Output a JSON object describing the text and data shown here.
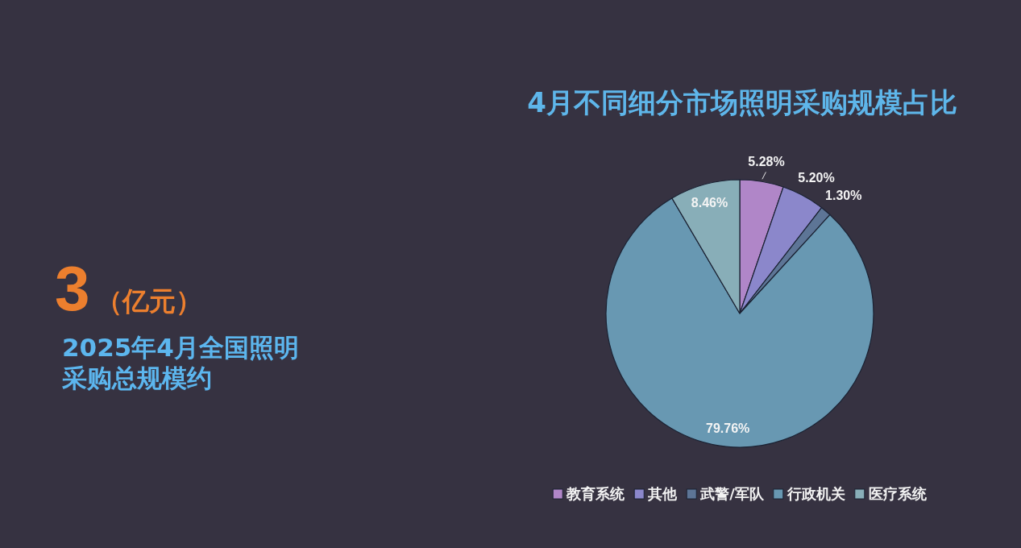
{
  "chart_data": [
    {
      "type": "other",
      "annotations": [
        "3",
        "（亿元）"
      ],
      "subtitle": "2025年4月全国照明采购总规模约"
    },
    {
      "type": "pie",
      "title": "4月不同细分市场照明采购规模占比",
      "categories": [
        "教育系统",
        "其他",
        "武警/军队",
        "行政机关",
        "医疗系统"
      ],
      "values": [
        5.28,
        5.2,
        1.3,
        79.76,
        8.46
      ],
      "colors": [
        "#b086c8",
        "#8b87cb",
        "#5d7596",
        "#6898b2",
        "#88aeb8"
      ],
      "value_labels": [
        "5.28%",
        "5.20%",
        "1.30%",
        "79.76%",
        "8.46%"
      ],
      "legend": "bottom"
    }
  ]
}
